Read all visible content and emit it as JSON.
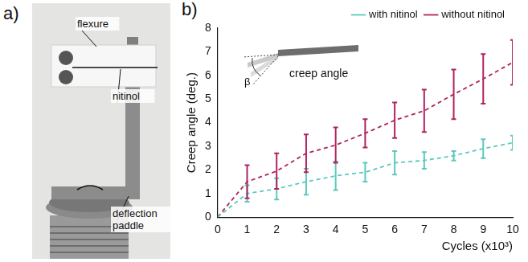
{
  "chart_data": {
    "type": "line",
    "panel_label": "b)",
    "x_label": "Cycles (x10³)",
    "y_label": "Creep angle (deg.)",
    "annotations": [
      "β",
      "creep angle"
    ],
    "x": [
      0,
      1,
      2,
      3,
      4,
      5,
      6,
      7,
      8,
      9,
      10
    ],
    "series": [
      {
        "name": "with nitinol",
        "color": "#5cc9bc",
        "line_style": "dashed",
        "values": [
          0,
          1.0,
          1.2,
          1.5,
          1.75,
          1.9,
          2.3,
          2.4,
          2.6,
          2.9,
          3.15
        ],
        "errors": [
          0,
          0.35,
          0.45,
          0.55,
          0.6,
          0.4,
          0.5,
          0.35,
          0.2,
          0.4,
          0.3
        ]
      },
      {
        "name": "without nitinol",
        "color": "#b0235f",
        "line_style": "dashed",
        "values": [
          0,
          1.5,
          1.95,
          2.7,
          3.05,
          3.55,
          4.1,
          4.5,
          5.2,
          5.85,
          6.55
        ],
        "errors": [
          0,
          0.7,
          0.75,
          0.8,
          0.75,
          0.6,
          0.75,
          0.9,
          1.05,
          1.05,
          0.95
        ]
      }
    ],
    "xlim": [
      0,
      10
    ],
    "xticks": [
      0,
      1,
      2,
      3,
      4,
      5,
      6,
      7,
      8,
      9,
      10
    ],
    "ylim": [
      0,
      8
    ],
    "yticks": [
      0,
      1,
      2,
      3,
      4,
      5,
      6,
      7,
      8
    ],
    "grid": false,
    "legend": "top-right"
  },
  "photo_panel": {
    "panel_label": "a)",
    "labels": [
      "flexure",
      "nitinol",
      "deflection paddle"
    ]
  }
}
